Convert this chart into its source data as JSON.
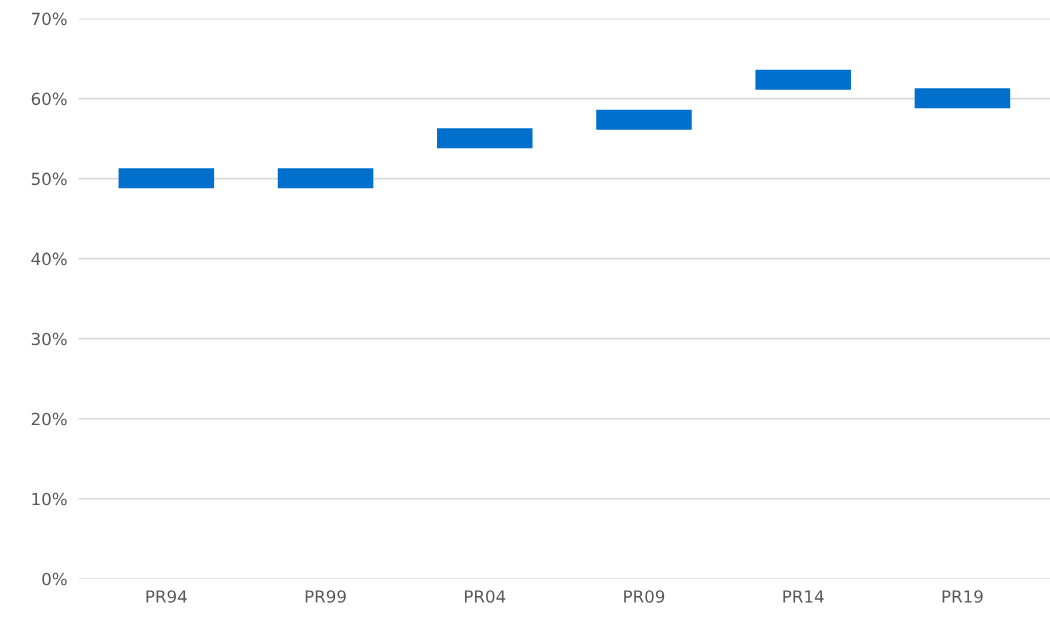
{
  "chart_data": {
    "type": "bar",
    "categories": [
      "PR94",
      "PR99",
      "PR04",
      "PR09",
      "PR14",
      "PR19"
    ],
    "base": [
      48.8,
      48.8,
      53.8,
      56.1,
      61.1,
      58.8
    ],
    "values": [
      2.5,
      2.5,
      2.5,
      2.5,
      2.5,
      2.5
    ],
    "color": "#0070cc",
    "ylim": [
      0,
      70
    ],
    "yticks": [
      {
        "value": 0,
        "label": "0%"
      },
      {
        "value": 10,
        "label": "10%"
      },
      {
        "value": 20,
        "label": "20%"
      },
      {
        "value": 30,
        "label": "30%"
      },
      {
        "value": 40,
        "label": "40%"
      },
      {
        "value": 50,
        "label": "50%"
      },
      {
        "value": 60,
        "label": "60%"
      },
      {
        "value": 70,
        "label": "70%"
      }
    ],
    "grid": "y"
  }
}
